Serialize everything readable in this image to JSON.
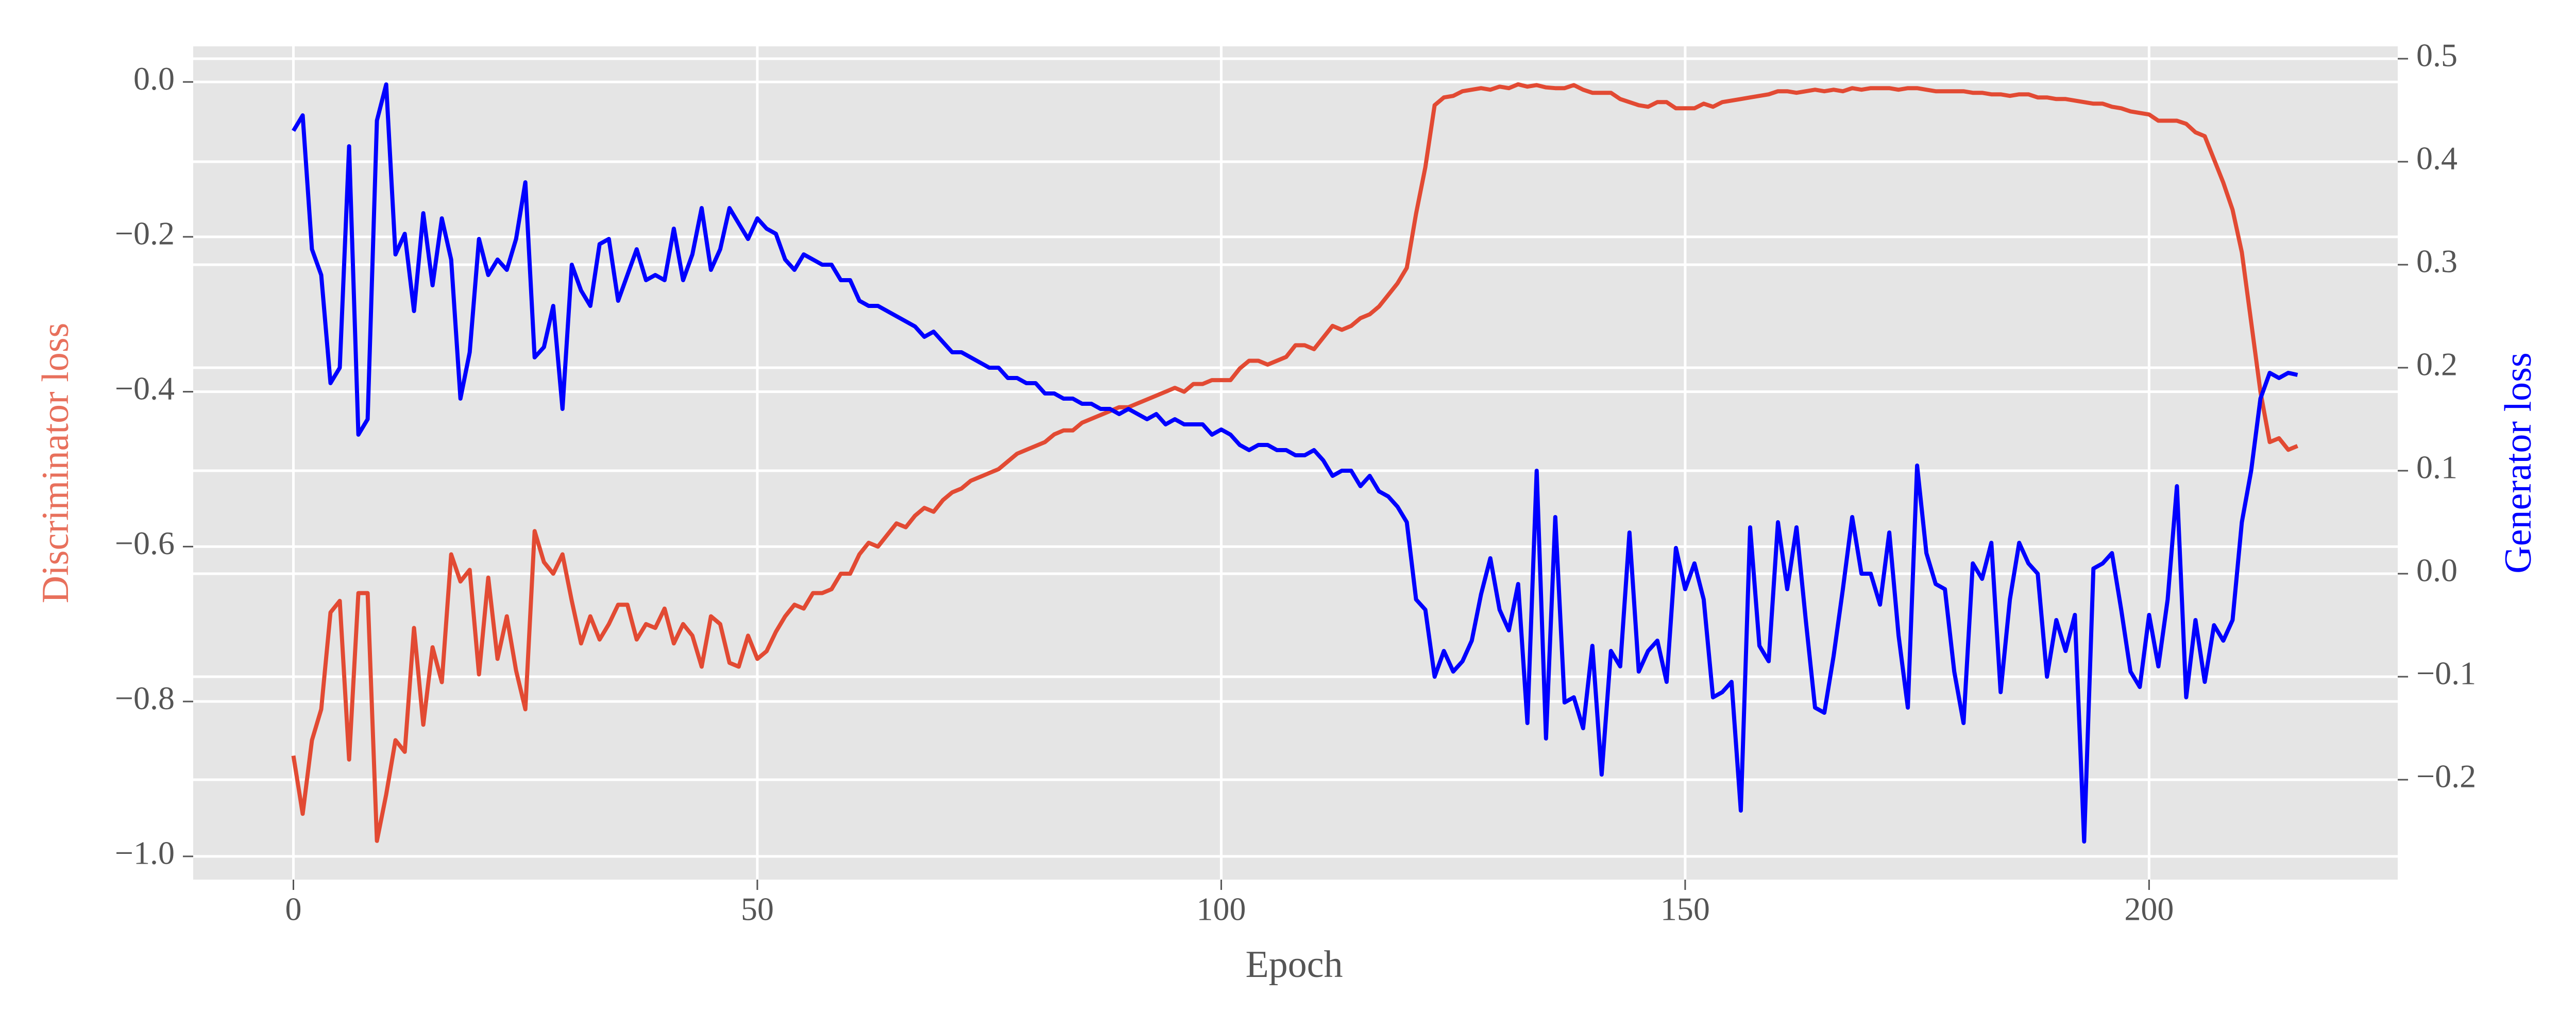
{
  "chart_data": {
    "type": "line",
    "xlabel": "Epoch",
    "ylabel": "Discriminator loss",
    "y2label": "Generator loss",
    "ylabel_color": "#E8705C",
    "y2label_color": "#0000ff",
    "background": "#E5E5E5",
    "grid": true,
    "xlim": [
      -10.8,
      226.8
    ],
    "xticks": [
      0,
      50,
      100,
      150,
      200
    ],
    "ylim": [
      -1.03,
      0.046
    ],
    "yticks": [
      {
        "value": 0,
        "label": "0.0"
      },
      {
        "value": -0.2,
        "label": "−0.2"
      },
      {
        "value": -0.4,
        "label": "−0.4"
      },
      {
        "value": -0.6,
        "label": "−0.6"
      },
      {
        "value": -0.8,
        "label": "−0.8"
      },
      {
        "value": -1.0,
        "label": "−1.0"
      }
    ],
    "y2lim": [
      -0.297,
      0.512
    ],
    "y2ticks": [
      {
        "value": -0.2,
        "label": "−0.2"
      },
      {
        "value": -0.1,
        "label": "−0.1"
      },
      {
        "value": 0,
        "label": "0.0"
      },
      0.1,
      0.2,
      0.3,
      0.4,
      0.5
    ],
    "x": [
      0,
      1,
      2,
      3,
      4,
      5,
      6,
      7,
      8,
      9,
      10,
      11,
      12,
      13,
      14,
      15,
      16,
      17,
      18,
      19,
      20,
      21,
      22,
      23,
      24,
      25,
      26,
      27,
      28,
      29,
      30,
      31,
      32,
      33,
      34,
      35,
      36,
      37,
      38,
      39,
      40,
      41,
      42,
      43,
      44,
      45,
      46,
      47,
      48,
      49,
      50,
      51,
      52,
      53,
      54,
      55,
      56,
      57,
      58,
      59,
      60,
      61,
      62,
      63,
      64,
      65,
      66,
      67,
      68,
      69,
      70,
      71,
      72,
      73,
      74,
      75,
      76,
      77,
      78,
      79,
      80,
      81,
      82,
      83,
      84,
      85,
      86,
      87,
      88,
      89,
      90,
      91,
      92,
      93,
      94,
      95,
      96,
      97,
      98,
      99,
      100,
      101,
      102,
      103,
      104,
      105,
      106,
      107,
      108,
      109,
      110,
      111,
      112,
      113,
      114,
      115,
      116,
      117,
      118,
      119,
      120,
      121,
      122,
      123,
      124,
      125,
      126,
      127,
      128,
      129,
      130,
      131,
      132,
      133,
      134,
      135,
      136,
      137,
      138,
      139,
      140,
      141,
      142,
      143,
      144,
      145,
      146,
      147,
      148,
      149,
      150,
      151,
      152,
      153,
      154,
      155,
      156,
      157,
      158,
      159,
      160,
      161,
      162,
      163,
      164,
      165,
      166,
      167,
      168,
      169,
      170,
      171,
      172,
      173,
      174,
      175,
      176,
      177,
      178,
      179,
      180,
      181,
      182,
      183,
      184,
      185,
      186,
      187,
      188,
      189,
      190,
      191,
      192,
      193,
      194,
      195,
      196,
      197,
      198,
      199,
      200,
      201,
      202,
      203,
      204,
      205,
      206,
      207,
      208,
      209,
      210,
      211,
      212,
      213,
      214,
      215,
      216
    ],
    "series": [
      {
        "name": "Discriminator loss",
        "color": "#E24A33",
        "axis": "y",
        "values": [
          -0.87,
          -0.945,
          -0.85,
          -0.81,
          -0.685,
          -0.67,
          -0.875,
          -0.66,
          -0.66,
          -0.98,
          -0.92,
          -0.85,
          -0.865,
          -0.705,
          -0.83,
          -0.73,
          -0.775,
          -0.61,
          -0.645,
          -0.63,
          -0.765,
          -0.64,
          -0.745,
          -0.69,
          -0.76,
          -0.81,
          -0.58,
          -0.62,
          -0.635,
          -0.61,
          -0.67,
          -0.725,
          -0.69,
          -0.72,
          -0.7,
          -0.675,
          -0.675,
          -0.72,
          -0.7,
          -0.705,
          -0.68,
          -0.725,
          -0.7,
          -0.715,
          -0.755,
          -0.69,
          -0.7,
          -0.75,
          -0.755,
          -0.715,
          -0.745,
          -0.735,
          -0.71,
          -0.69,
          -0.675,
          -0.68,
          -0.66,
          -0.66,
          -0.655,
          -0.635,
          -0.635,
          -0.61,
          -0.595,
          -0.6,
          -0.585,
          -0.57,
          -0.575,
          -0.56,
          -0.55,
          -0.555,
          -0.54,
          -0.53,
          -0.525,
          -0.515,
          -0.51,
          -0.505,
          -0.5,
          -0.49,
          -0.48,
          -0.475,
          -0.47,
          -0.465,
          -0.455,
          -0.45,
          -0.45,
          -0.44,
          -0.435,
          -0.43,
          -0.425,
          -0.42,
          -0.42,
          -0.415,
          -0.41,
          -0.405,
          -0.4,
          -0.395,
          -0.4,
          -0.39,
          -0.39,
          -0.385,
          -0.385,
          -0.385,
          -0.37,
          -0.36,
          -0.36,
          -0.365,
          -0.36,
          -0.355,
          -0.34,
          -0.34,
          -0.345,
          -0.33,
          -0.315,
          -0.32,
          -0.315,
          -0.305,
          -0.3,
          -0.29,
          -0.275,
          -0.26,
          -0.24,
          -0.17,
          -0.11,
          -0.03,
          -0.02,
          -0.018,
          -0.012,
          -0.01,
          -0.008,
          -0.01,
          -0.006,
          -0.008,
          -0.003,
          -0.006,
          -0.004,
          -0.007,
          -0.008,
          -0.008,
          -0.004,
          -0.01,
          -0.014,
          -0.014,
          -0.014,
          -0.022,
          -0.026,
          -0.03,
          -0.032,
          -0.026,
          -0.026,
          -0.034,
          -0.034,
          -0.034,
          -0.028,
          -0.032,
          -0.026,
          -0.024,
          -0.022,
          -0.02,
          -0.018,
          -0.016,
          -0.012,
          -0.012,
          -0.014,
          -0.012,
          -0.01,
          -0.012,
          -0.01,
          -0.012,
          -0.008,
          -0.01,
          -0.008,
          -0.008,
          -0.008,
          -0.01,
          -0.008,
          -0.008,
          -0.01,
          -0.012,
          -0.012,
          -0.012,
          -0.012,
          -0.014,
          -0.014,
          -0.016,
          -0.016,
          -0.018,
          -0.016,
          -0.016,
          -0.02,
          -0.02,
          -0.022,
          -0.022,
          -0.024,
          -0.026,
          -0.028,
          -0.028,
          -0.032,
          -0.034,
          -0.038,
          -0.04,
          -0.042,
          -0.05,
          -0.05,
          -0.05,
          -0.054,
          -0.065,
          -0.07,
          -0.1,
          -0.13,
          -0.165,
          -0.22,
          -0.31,
          -0.4,
          -0.465,
          -0.46,
          -0.475,
          -0.47
        ]
      },
      {
        "name": "Generator loss",
        "color": "#0000ff",
        "axis": "y2",
        "values": [
          0.43,
          0.445,
          0.315,
          0.29,
          0.185,
          0.2,
          0.415,
          0.135,
          0.15,
          0.44,
          0.475,
          0.31,
          0.33,
          0.255,
          0.35,
          0.28,
          0.345,
          0.305,
          0.17,
          0.215,
          0.325,
          0.29,
          0.305,
          0.295,
          0.325,
          0.38,
          0.21,
          0.22,
          0.26,
          0.16,
          0.3,
          0.275,
          0.26,
          0.32,
          0.325,
          0.265,
          0.29,
          0.315,
          0.285,
          0.29,
          0.285,
          0.335,
          0.285,
          0.31,
          0.355,
          0.295,
          0.315,
          0.355,
          0.34,
          0.325,
          0.345,
          0.335,
          0.33,
          0.305,
          0.295,
          0.31,
          0.305,
          0.3,
          0.3,
          0.285,
          0.285,
          0.265,
          0.26,
          0.26,
          0.255,
          0.25,
          0.245,
          0.24,
          0.23,
          0.235,
          0.225,
          0.215,
          0.215,
          0.21,
          0.205,
          0.2,
          0.2,
          0.19,
          0.19,
          0.185,
          0.185,
          0.175,
          0.175,
          0.17,
          0.17,
          0.165,
          0.165,
          0.16,
          0.16,
          0.155,
          0.16,
          0.155,
          0.15,
          0.155,
          0.145,
          0.15,
          0.145,
          0.145,
          0.145,
          0.135,
          0.14,
          0.135,
          0.125,
          0.12,
          0.125,
          0.125,
          0.12,
          0.12,
          0.115,
          0.115,
          0.12,
          0.11,
          0.095,
          0.1,
          0.1,
          0.085,
          0.095,
          0.08,
          0.075,
          0.065,
          0.05,
          -0.025,
          -0.035,
          -0.1,
          -0.075,
          -0.095,
          -0.085,
          -0.065,
          -0.02,
          0.015,
          -0.035,
          -0.055,
          -0.01,
          -0.145,
          0.1,
          -0.16,
          0.055,
          -0.125,
          -0.12,
          -0.15,
          -0.07,
          -0.195,
          -0.075,
          -0.09,
          0.04,
          -0.095,
          -0.075,
          -0.065,
          -0.105,
          0.025,
          -0.015,
          0.01,
          -0.025,
          -0.12,
          -0.115,
          -0.105,
          -0.23,
          0.045,
          -0.07,
          -0.085,
          0.05,
          -0.015,
          0.045,
          -0.045,
          -0.13,
          -0.135,
          -0.08,
          -0.015,
          0.055,
          0.0,
          0.0,
          -0.03,
          0.04,
          -0.06,
          -0.13,
          0.105,
          0.02,
          -0.01,
          -0.015,
          -0.095,
          -0.145,
          0.01,
          -0.005,
          0.03,
          -0.115,
          -0.025,
          0.03,
          0.01,
          0.0,
          -0.1,
          -0.045,
          -0.075,
          -0.04,
          -0.26,
          0.005,
          0.01,
          0.02,
          -0.035,
          -0.095,
          -0.11,
          -0.04,
          -0.09,
          -0.025,
          0.085,
          -0.12,
          -0.045,
          -0.105,
          -0.05,
          -0.065,
          -0.045,
          0.05,
          0.1,
          0.17,
          0.195,
          0.19,
          0.195,
          0.193
        ]
      }
    ]
  }
}
